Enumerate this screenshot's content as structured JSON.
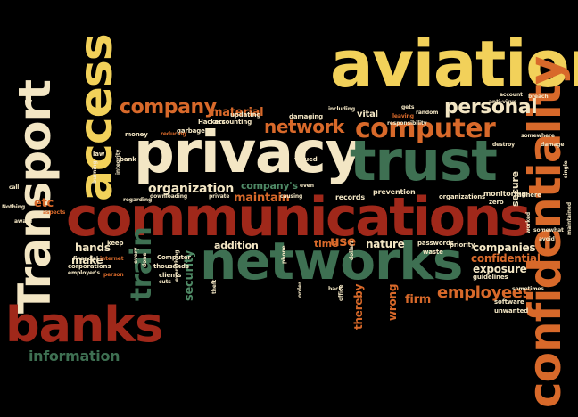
{
  "colors": {
    "background": "#000000",
    "yellow": "#f2d15a",
    "cream": "#f3e6c4",
    "orange": "#d8692a",
    "dark_red": "#a0281a",
    "green": "#3e7052",
    "light_green": "#4f8a66"
  },
  "words": {
    "aviation": "aviation",
    "communications": "communications",
    "privacy": "privacy",
    "trust": "trust",
    "networks": "networks",
    "confidentiality": "confidentiality",
    "transport": "Transport",
    "access": "access",
    "banks": "banks",
    "computer": "computer",
    "personal": "personal",
    "company": "company",
    "network": "network",
    "organization": "organization",
    "train": "train",
    "employees": "employees",
    "information": "information",
    "material": "material",
    "maintain": "maintain",
    "companys": "company's",
    "security": "security",
    "companies": "companies",
    "confidential": "confidential",
    "exposure": "exposure",
    "firm": "firm",
    "wrong": "wrong",
    "thereby": "thereby",
    "nature": "nature",
    "use": "use",
    "time": "time",
    "addition": "addition",
    "hands": "hands",
    "make": "make",
    "etc": "etc",
    "vital": "vital",
    "secure": "secure",
    "prevention": "prevention",
    "records": "records",
    "valued": "valued",
    "monitoring": "monitoring",
    "adhere": "adhere",
    "zero": "zero",
    "damaging": "damaging",
    "accounting": "accounting",
    "updating": "updating",
    "hackers": "Hackers",
    "garbage": "garbage",
    "money": "money",
    "reducing": "reducing",
    "bank": "bank",
    "law": "law",
    "keep": "keep",
    "computer_small": "Computer",
    "corporations": "corporations",
    "thousands": "thousands",
    "clients": "clients",
    "cuts": "cuts",
    "financial": "financial",
    "employers": "employer's",
    "person": "person",
    "passwords": "passwords",
    "priority": "priority",
    "waste": "waste",
    "guidelines": "guidelines",
    "software": "software",
    "unwanted": "unwanted",
    "somewhat": "somewhat",
    "avoid": "avoid",
    "sometimes": "sometimes",
    "worked": "worked",
    "maintained": "maintained",
    "breach": "breach",
    "account": "account",
    "anti_virus": "anti-virus",
    "somewhere": "somewhere",
    "damage": "damage",
    "single": "single",
    "including": "including",
    "gets": "gets",
    "leaving": "leaving",
    "random": "random",
    "responsibility": "responsibility",
    "destroy": "destroy",
    "organizations": "organizations",
    "regarding": "regarding",
    "downloading": "downloading",
    "private": "private",
    "causing": "causing",
    "even": "even",
    "phone": "phone",
    "dollars": "dollars",
    "order": "order",
    "back": "back",
    "office": "office",
    "aware": "aware",
    "nothing": "Nothing",
    "call": "call",
    "aspects": "aspects",
    "theft": "theft",
    "integrity": "integrity",
    "burning": "burning",
    "everything": "everything",
    "every": "every",
    "done": "done",
    "internet": "internet"
  }
}
